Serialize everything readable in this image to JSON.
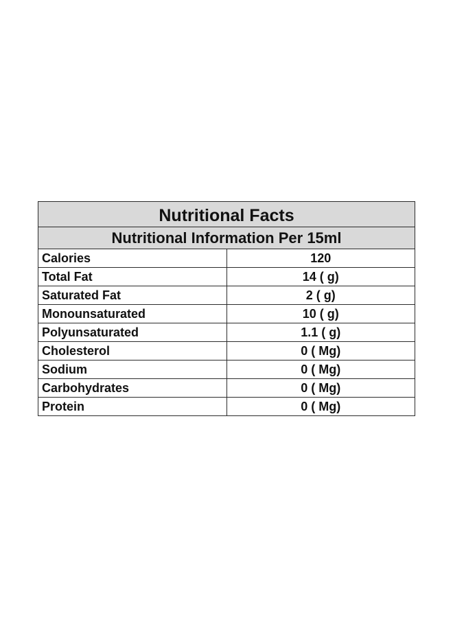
{
  "table": {
    "title": "Nutritional Facts",
    "subtitle": "Nutritional Information Per 15ml",
    "rows": [
      {
        "name": "Calories",
        "value": "120"
      },
      {
        "name": "Total Fat",
        "value": "14 ( g)"
      },
      {
        "name": "Saturated Fat",
        "value": "2 ( g)"
      },
      {
        "name": "Monounsaturated",
        "value": "10 ( g)"
      },
      {
        "name": "Polyunsaturated",
        "value": "1.1 ( g)"
      },
      {
        "name": "Cholesterol",
        "value": "0 ( Mg)"
      },
      {
        "name": "Sodium",
        "value": "0 ( Mg)"
      },
      {
        "name": "Carbohydrates",
        "value": "0 ( Mg)"
      },
      {
        "name": "Protein",
        "value": "0 ( Mg)"
      }
    ],
    "header_background": "#d9d9d9",
    "border_color": "#2b2b2b"
  }
}
